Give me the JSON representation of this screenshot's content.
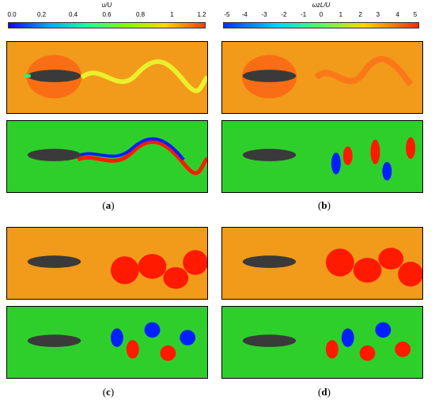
{
  "colorbars": [
    {
      "title": "u/U",
      "ticks": [
        "0.0",
        "0.2",
        "0.4",
        "0.6",
        "0.8",
        "1",
        "1.2"
      ]
    },
    {
      "title": "ωzL/U",
      "ticks": [
        "-5",
        "-4",
        "-3",
        "-2",
        "-1",
        "0",
        "1",
        "2",
        "3",
        "4",
        "5"
      ]
    }
  ],
  "subfigures": [
    {
      "label": "a"
    },
    {
      "label": "b"
    },
    {
      "label": "c"
    },
    {
      "label": "d"
    }
  ],
  "colors": {
    "velocity_background": "#f29a1a",
    "vorticity_background": "#2fcf2b",
    "body": "#3a3a3a",
    "positive": "#ff1a00",
    "negative": "#0020ff"
  }
}
